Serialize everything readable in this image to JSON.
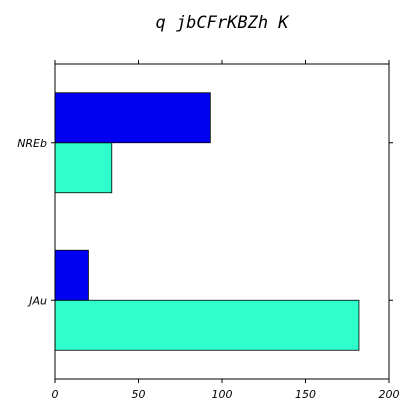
{
  "chart_data": {
    "type": "bar",
    "orientation": "horizontal",
    "title": "q jbCFrKBZh K",
    "xlabel": "",
    "ylabel": "",
    "categories": [
      "JAu",
      "NREb"
    ],
    "series": [
      {
        "color": "#2effcc",
        "values": [
          182,
          34
        ]
      },
      {
        "color": "#0000f0",
        "values": [
          20,
          93
        ]
      }
    ],
    "xlim": [
      0,
      200
    ],
    "xticks": [
      0,
      50,
      100,
      150,
      200
    ],
    "grid": false,
    "legend": "none"
  }
}
